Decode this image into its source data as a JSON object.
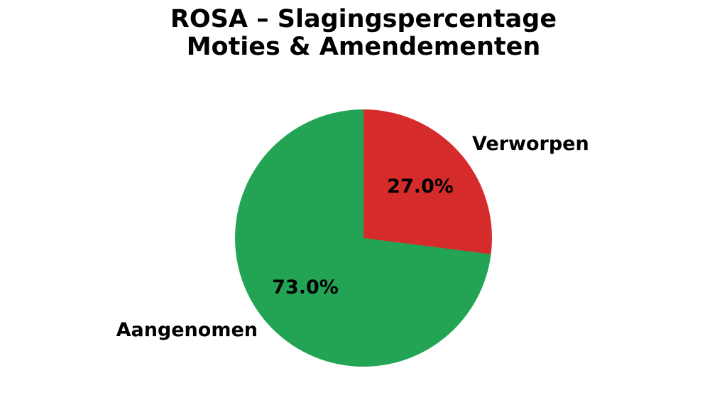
{
  "chart_data": {
    "type": "pie",
    "title": "ROSA – Slagingspercentage\nMoties & Amendementen",
    "start_angle": "top",
    "direction": "clockwise",
    "legend": "none",
    "background_color": "#ffffff",
    "text_color": "#000000",
    "slices": [
      {
        "label": "Verworpen",
        "value": 27.0,
        "pct_label": "27.0%",
        "color": "#d62b2b"
      },
      {
        "label": "Aangenomen",
        "value": 73.0,
        "pct_label": "73.0%",
        "color": "#23a455"
      }
    ]
  }
}
